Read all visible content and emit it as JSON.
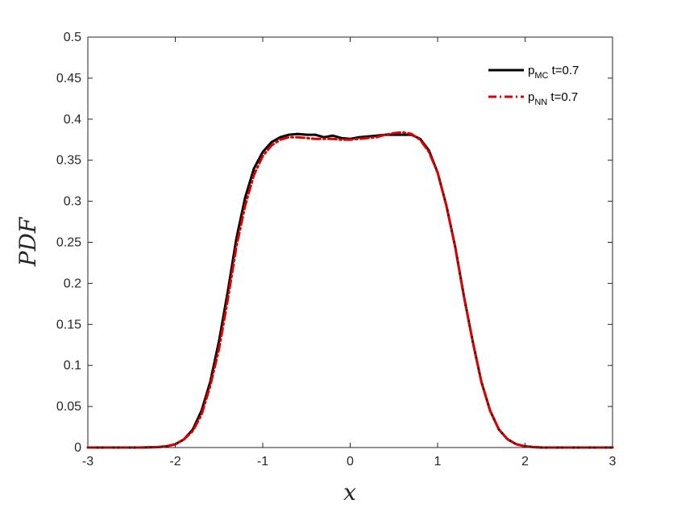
{
  "chart_data": {
    "type": "line",
    "title": "",
    "xlabel": "x",
    "ylabel": "PDF",
    "xlim": [
      -3,
      3
    ],
    "ylim": [
      0,
      0.5
    ],
    "xticks": [
      -3,
      -2,
      -1,
      0,
      1,
      2,
      3
    ],
    "xtick_labels": [
      "-3",
      "-2",
      "-1",
      "0",
      "1",
      "2",
      "3"
    ],
    "yticks": [
      0,
      0.05,
      0.1,
      0.15,
      0.2,
      0.25,
      0.3,
      0.35,
      0.4,
      0.45,
      0.5
    ],
    "ytick_labels": [
      "0",
      "0.05",
      "0.1",
      "0.15",
      "0.2",
      "0.25",
      "0.3",
      "0.35",
      "0.4",
      "0.45",
      "0.5"
    ],
    "grid": false,
    "legend_position": "top-right",
    "series": [
      {
        "name": "p_MC t=0.7",
        "legend_main": "p",
        "legend_sub": "MC",
        "legend_rest": " t=0.7",
        "color": "#000000",
        "style": "solid",
        "x": [
          -3.0,
          -2.4,
          -2.2,
          -2.1,
          -2.0,
          -1.9,
          -1.8,
          -1.7,
          -1.6,
          -1.5,
          -1.4,
          -1.3,
          -1.2,
          -1.1,
          -1.0,
          -0.9,
          -0.8,
          -0.7,
          -0.6,
          -0.5,
          -0.4,
          -0.3,
          -0.2,
          -0.1,
          0.0,
          0.1,
          0.2,
          0.3,
          0.4,
          0.5,
          0.6,
          0.7,
          0.8,
          0.9,
          1.0,
          1.1,
          1.2,
          1.3,
          1.4,
          1.5,
          1.6,
          1.7,
          1.8,
          1.9,
          2.0,
          2.1,
          2.2,
          2.4,
          3.0
        ],
        "y": [
          0.0,
          0.0,
          0.0005,
          0.0015,
          0.004,
          0.01,
          0.022,
          0.045,
          0.08,
          0.13,
          0.19,
          0.255,
          0.305,
          0.34,
          0.36,
          0.372,
          0.378,
          0.381,
          0.382,
          0.381,
          0.381,
          0.378,
          0.38,
          0.377,
          0.376,
          0.378,
          0.379,
          0.38,
          0.381,
          0.381,
          0.381,
          0.381,
          0.376,
          0.362,
          0.335,
          0.295,
          0.245,
          0.185,
          0.13,
          0.08,
          0.045,
          0.022,
          0.01,
          0.004,
          0.0015,
          0.0005,
          0.0,
          0.0,
          0.0
        ]
      },
      {
        "name": "p_NN t=0.7",
        "legend_main": "p",
        "legend_sub": "NN",
        "legend_rest": " t=0.7",
        "color": "#e00000",
        "style": "dashdot",
        "x": [
          -3.0,
          -2.4,
          -2.2,
          -2.1,
          -2.0,
          -1.9,
          -1.8,
          -1.7,
          -1.6,
          -1.5,
          -1.4,
          -1.3,
          -1.2,
          -1.1,
          -1.0,
          -0.9,
          -0.8,
          -0.7,
          -0.6,
          -0.5,
          -0.4,
          -0.3,
          -0.2,
          -0.1,
          0.0,
          0.1,
          0.2,
          0.3,
          0.4,
          0.5,
          0.6,
          0.7,
          0.8,
          0.9,
          1.0,
          1.1,
          1.2,
          1.3,
          1.4,
          1.5,
          1.6,
          1.7,
          1.8,
          1.9,
          2.0,
          2.1,
          2.2,
          2.4,
          3.0
        ],
        "y": [
          0.0,
          0.0,
          0.0005,
          0.0015,
          0.004,
          0.01,
          0.02,
          0.04,
          0.075,
          0.12,
          0.18,
          0.245,
          0.295,
          0.332,
          0.355,
          0.368,
          0.375,
          0.378,
          0.378,
          0.377,
          0.376,
          0.376,
          0.376,
          0.375,
          0.375,
          0.376,
          0.377,
          0.378,
          0.381,
          0.383,
          0.384,
          0.382,
          0.375,
          0.36,
          0.335,
          0.295,
          0.245,
          0.185,
          0.13,
          0.08,
          0.045,
          0.022,
          0.01,
          0.004,
          0.0015,
          0.0005,
          0.0,
          0.0,
          0.0
        ]
      }
    ]
  }
}
